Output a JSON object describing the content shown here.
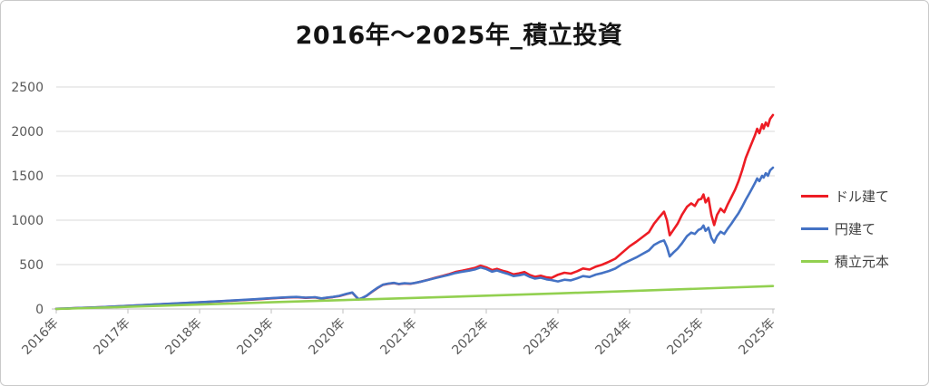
{
  "chart_data": {
    "type": "line",
    "title": "2016年〜2025年_積立投資",
    "xlabel": "",
    "ylabel": "",
    "ylim": [
      0,
      2500
    ],
    "y_ticks": [
      0,
      500,
      1000,
      1500,
      2000,
      2500
    ],
    "x_tick_labels": [
      "2016年",
      "2017年",
      "2018年",
      "2019年",
      "2020年",
      "2021年",
      "2022年",
      "2023年",
      "2024年",
      "2025年",
      "2025年"
    ],
    "grid": "horizontal",
    "legend_position": "right",
    "colors": {
      "grid": "#d9d9d9",
      "axis": "#bfbfbf",
      "tick_text": "#595959",
      "title_text": "#141414"
    },
    "series": [
      {
        "name": "ドル建て",
        "color": "#ed1c24",
        "points": [
          [
            0,
            2
          ],
          [
            0.015,
            5
          ],
          [
            0.03,
            11
          ],
          [
            0.046,
            15
          ],
          [
            0.061,
            20
          ],
          [
            0.076,
            26
          ],
          [
            0.1,
            35
          ],
          [
            0.114,
            40
          ],
          [
            0.127,
            46
          ],
          [
            0.139,
            50
          ],
          [
            0.152,
            56
          ],
          [
            0.165,
            60
          ],
          [
            0.177,
            66
          ],
          [
            0.19,
            70
          ],
          [
            0.2,
            74
          ],
          [
            0.215,
            81
          ],
          [
            0.228,
            86
          ],
          [
            0.241,
            92
          ],
          [
            0.253,
            97
          ],
          [
            0.266,
            102
          ],
          [
            0.278,
            108
          ],
          [
            0.291,
            114
          ],
          [
            0.3,
            119
          ],
          [
            0.31,
            124
          ],
          [
            0.323,
            130
          ],
          [
            0.335,
            134
          ],
          [
            0.348,
            126
          ],
          [
            0.361,
            131
          ],
          [
            0.37,
            117
          ],
          [
            0.377,
            126
          ],
          [
            0.386,
            134
          ],
          [
            0.395,
            146
          ],
          [
            0.405,
            168
          ],
          [
            0.413,
            184
          ],
          [
            0.418,
            140
          ],
          [
            0.422,
            107
          ],
          [
            0.427,
            122
          ],
          [
            0.433,
            148
          ],
          [
            0.441,
            196
          ],
          [
            0.448,
            235
          ],
          [
            0.456,
            272
          ],
          [
            0.463,
            284
          ],
          [
            0.471,
            292
          ],
          [
            0.478,
            280
          ],
          [
            0.486,
            288
          ],
          [
            0.494,
            284
          ],
          [
            0.5,
            292
          ],
          [
            0.509,
            308
          ],
          [
            0.519,
            330
          ],
          [
            0.529,
            352
          ],
          [
            0.539,
            372
          ],
          [
            0.547,
            390
          ],
          [
            0.557,
            416
          ],
          [
            0.567,
            432
          ],
          [
            0.576,
            448
          ],
          [
            0.584,
            462
          ],
          [
            0.592,
            488
          ],
          [
            0.6,
            468
          ],
          [
            0.608,
            438
          ],
          [
            0.615,
            452
          ],
          [
            0.623,
            430
          ],
          [
            0.63,
            415
          ],
          [
            0.638,
            390
          ],
          [
            0.646,
            402
          ],
          [
            0.653,
            416
          ],
          [
            0.661,
            382
          ],
          [
            0.668,
            362
          ],
          [
            0.676,
            374
          ],
          [
            0.684,
            356
          ],
          [
            0.691,
            350
          ],
          [
            0.7,
            386
          ],
          [
            0.709,
            408
          ],
          [
            0.718,
            398
          ],
          [
            0.727,
            426
          ],
          [
            0.735,
            456
          ],
          [
            0.744,
            444
          ],
          [
            0.753,
            478
          ],
          [
            0.762,
            500
          ],
          [
            0.771,
            532
          ],
          [
            0.78,
            566
          ],
          [
            0.789,
            630
          ],
          [
            0.8,
            706
          ],
          [
            0.809,
            755
          ],
          [
            0.818,
            810
          ],
          [
            0.827,
            865
          ],
          [
            0.834,
            960
          ],
          [
            0.842,
            1040
          ],
          [
            0.848,
            1096
          ],
          [
            0.852,
            1000
          ],
          [
            0.856,
            830
          ],
          [
            0.861,
            890
          ],
          [
            0.867,
            960
          ],
          [
            0.873,
            1060
          ],
          [
            0.88,
            1150
          ],
          [
            0.886,
            1190
          ],
          [
            0.891,
            1160
          ],
          [
            0.896,
            1230
          ],
          [
            0.9,
            1240
          ],
          [
            0.903,
            1290
          ],
          [
            0.906,
            1200
          ],
          [
            0.91,
            1250
          ],
          [
            0.914,
            1060
          ],
          [
            0.918,
            945
          ],
          [
            0.922,
            1060
          ],
          [
            0.927,
            1130
          ],
          [
            0.932,
            1090
          ],
          [
            0.937,
            1180
          ],
          [
            0.942,
            1260
          ],
          [
            0.947,
            1340
          ],
          [
            0.952,
            1440
          ],
          [
            0.957,
            1560
          ],
          [
            0.962,
            1700
          ],
          [
            0.967,
            1800
          ],
          [
            0.971,
            1880
          ],
          [
            0.975,
            1960
          ],
          [
            0.978,
            2030
          ],
          [
            0.981,
            1980
          ],
          [
            0.985,
            2080
          ],
          [
            0.987,
            2030
          ],
          [
            0.99,
            2100
          ],
          [
            0.993,
            2060
          ],
          [
            0.996,
            2140
          ],
          [
            1,
            2185
          ]
        ]
      },
      {
        "name": "円建て",
        "color": "#4472c4",
        "points": [
          [
            0,
            2
          ],
          [
            0.03,
            11
          ],
          [
            0.061,
            20
          ],
          [
            0.1,
            36
          ],
          [
            0.127,
            47
          ],
          [
            0.152,
            57
          ],
          [
            0.177,
            67
          ],
          [
            0.2,
            76
          ],
          [
            0.228,
            88
          ],
          [
            0.253,
            99
          ],
          [
            0.278,
            110
          ],
          [
            0.3,
            121
          ],
          [
            0.323,
            132
          ],
          [
            0.335,
            136
          ],
          [
            0.348,
            128
          ],
          [
            0.361,
            133
          ],
          [
            0.37,
            119
          ],
          [
            0.377,
            128
          ],
          [
            0.386,
            136
          ],
          [
            0.395,
            148
          ],
          [
            0.405,
            170
          ],
          [
            0.413,
            186
          ],
          [
            0.418,
            142
          ],
          [
            0.422,
            110
          ],
          [
            0.427,
            125
          ],
          [
            0.433,
            150
          ],
          [
            0.441,
            198
          ],
          [
            0.448,
            237
          ],
          [
            0.456,
            274
          ],
          [
            0.463,
            286
          ],
          [
            0.471,
            294
          ],
          [
            0.478,
            282
          ],
          [
            0.486,
            290
          ],
          [
            0.494,
            286
          ],
          [
            0.5,
            293
          ],
          [
            0.509,
            308
          ],
          [
            0.519,
            328
          ],
          [
            0.529,
            348
          ],
          [
            0.539,
            367
          ],
          [
            0.547,
            383
          ],
          [
            0.557,
            405
          ],
          [
            0.567,
            420
          ],
          [
            0.576,
            432
          ],
          [
            0.584,
            445
          ],
          [
            0.592,
            468
          ],
          [
            0.6,
            450
          ],
          [
            0.608,
            420
          ],
          [
            0.615,
            434
          ],
          [
            0.623,
            412
          ],
          [
            0.63,
            396
          ],
          [
            0.638,
            370
          ],
          [
            0.646,
            380
          ],
          [
            0.653,
            392
          ],
          [
            0.661,
            360
          ],
          [
            0.668,
            342
          ],
          [
            0.676,
            352
          ],
          [
            0.684,
            334
          ],
          [
            0.691,
            325
          ],
          [
            0.7,
            310
          ],
          [
            0.709,
            330
          ],
          [
            0.718,
            322
          ],
          [
            0.727,
            346
          ],
          [
            0.735,
            370
          ],
          [
            0.744,
            360
          ],
          [
            0.753,
            388
          ],
          [
            0.762,
            405
          ],
          [
            0.771,
            428
          ],
          [
            0.78,
            455
          ],
          [
            0.789,
            502
          ],
          [
            0.8,
            545
          ],
          [
            0.809,
            580
          ],
          [
            0.818,
            620
          ],
          [
            0.827,
            660
          ],
          [
            0.834,
            720
          ],
          [
            0.842,
            756
          ],
          [
            0.848,
            772
          ],
          [
            0.852,
            700
          ],
          [
            0.856,
            592
          ],
          [
            0.861,
            635
          ],
          [
            0.867,
            680
          ],
          [
            0.873,
            740
          ],
          [
            0.88,
            820
          ],
          [
            0.886,
            860
          ],
          [
            0.891,
            845
          ],
          [
            0.896,
            890
          ],
          [
            0.9,
            905
          ],
          [
            0.903,
            940
          ],
          [
            0.906,
            880
          ],
          [
            0.91,
            915
          ],
          [
            0.914,
            800
          ],
          [
            0.918,
            748
          ],
          [
            0.922,
            820
          ],
          [
            0.927,
            870
          ],
          [
            0.932,
            845
          ],
          [
            0.937,
            905
          ],
          [
            0.942,
            960
          ],
          [
            0.947,
            1020
          ],
          [
            0.952,
            1080
          ],
          [
            0.957,
            1150
          ],
          [
            0.962,
            1230
          ],
          [
            0.967,
            1300
          ],
          [
            0.971,
            1360
          ],
          [
            0.975,
            1420
          ],
          [
            0.978,
            1470
          ],
          [
            0.981,
            1440
          ],
          [
            0.985,
            1500
          ],
          [
            0.987,
            1480
          ],
          [
            0.99,
            1530
          ],
          [
            0.993,
            1500
          ],
          [
            0.996,
            1560
          ],
          [
            1,
            1592
          ]
        ]
      },
      {
        "name": "積立元本",
        "color": "#92d050",
        "points": [
          [
            0,
            0
          ],
          [
            0.1,
            25
          ],
          [
            0.2,
            50
          ],
          [
            0.3,
            75
          ],
          [
            0.4,
            100
          ],
          [
            0.5,
            125
          ],
          [
            0.6,
            150
          ],
          [
            0.7,
            176
          ],
          [
            0.8,
            202
          ],
          [
            0.9,
            230
          ],
          [
            1,
            258
          ]
        ]
      }
    ]
  }
}
